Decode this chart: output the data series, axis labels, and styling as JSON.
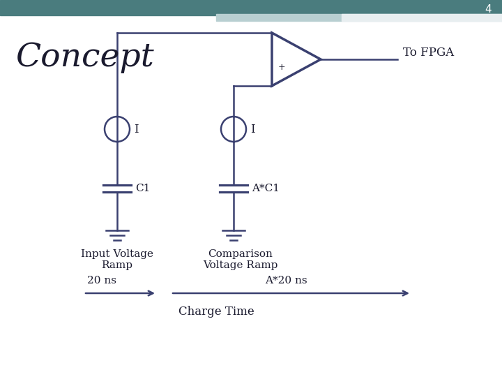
{
  "bg_color": "#ffffff",
  "header_color": "#4a7c7e",
  "header_light": "#b8cfd1",
  "header_white": "#e8eef0",
  "slide_number": "4",
  "title": "Concept",
  "to_fpga_label": "To FPGA",
  "current_label": "I",
  "cap1_label": "C1",
  "cap2_label": "A*C1",
  "label1": "Input Voltage\nRamp",
  "label2": "Comparison\nVoltage Ramp",
  "time1": "20 ns",
  "time2": "A*20 ns",
  "charge_time": "Charge Time",
  "line_color": "#3a4070",
  "text_color": "#1a1a2e",
  "lw": 1.8,
  "lw_thick": 2.5
}
